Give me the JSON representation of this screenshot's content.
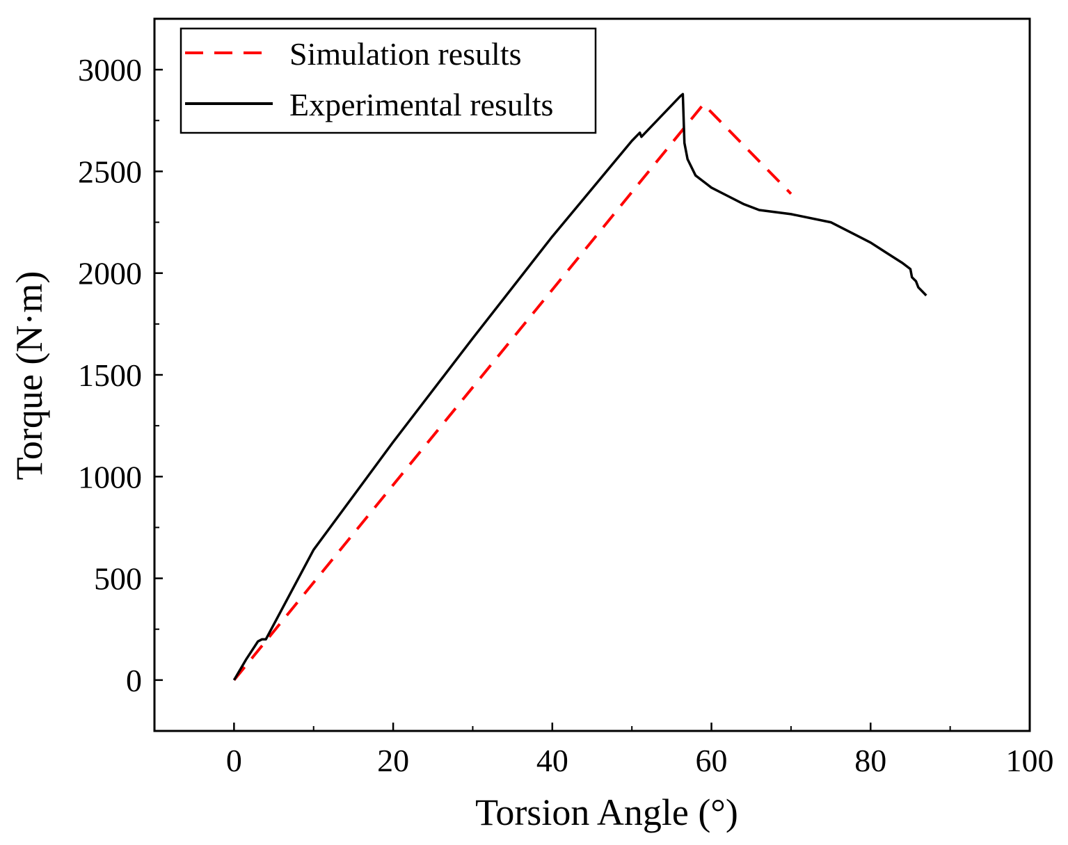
{
  "chart_data": {
    "type": "line",
    "title": "",
    "xlabel": "Torsion Angle (°)",
    "ylabel": "Torque (N·m)",
    "xlim": [
      -10,
      100
    ],
    "ylim": [
      -250,
      3250
    ],
    "xticks": [
      0,
      20,
      40,
      60,
      80,
      100
    ],
    "xtick_labels": [
      "0",
      "20",
      "40",
      "60",
      "80",
      "100"
    ],
    "yticks": [
      0,
      500,
      1000,
      1500,
      2000,
      2500,
      3000
    ],
    "ytick_labels": [
      "0",
      "500",
      "1000",
      "1500",
      "2000",
      "2500",
      "3000"
    ],
    "grid": false,
    "legend_position": "top-left",
    "series": [
      {
        "name": "Simulation results",
        "color": "#ff0000",
        "style": "dashed",
        "x": [
          0,
          59,
          70
        ],
        "y": [
          0,
          2830,
          2390
        ]
      },
      {
        "name": "Experimental results",
        "color": "#000000",
        "style": "solid",
        "x": [
          0,
          1.5,
          3,
          3.5,
          4,
          10,
          20,
          30,
          40,
          50,
          51,
          51.2,
          56.1,
          56.4,
          56.6,
          57,
          58,
          60,
          62,
          64,
          66,
          70,
          75,
          78,
          80,
          82,
          84,
          85,
          85.2,
          85.7,
          86,
          87
        ],
        "y": [
          0,
          100,
          190,
          200,
          200,
          640,
          1170,
          1680,
          2180,
          2650,
          2690,
          2670,
          2870,
          2880,
          2640,
          2560,
          2480,
          2420,
          2380,
          2340,
          2310,
          2290,
          2250,
          2190,
          2150,
          2100,
          2050,
          2020,
          1980,
          1960,
          1930,
          1890
        ]
      }
    ]
  }
}
